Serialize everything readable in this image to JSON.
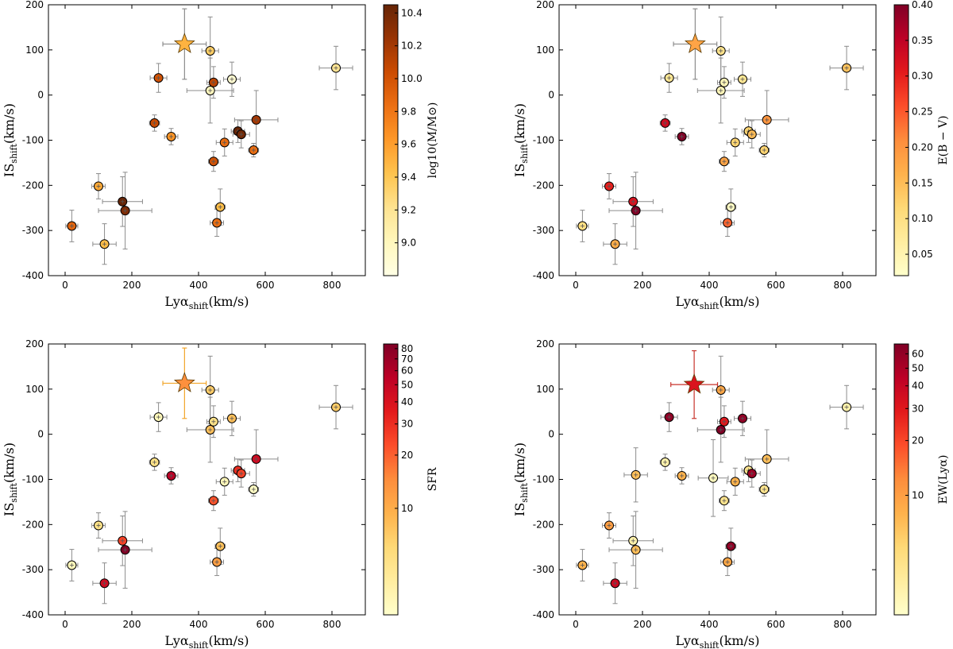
{
  "chart_data": [
    {
      "type": "scatter",
      "xlabel": "Lyα",
      "xlabel_sub": "shift",
      "xlabel_unit": "(km/s)",
      "ylabel": "IS",
      "ylabel_sub": "shift",
      "ylabel_unit": "(km/s)",
      "xlim": [
        -50,
        900
      ],
      "ylim": [
        -400,
        200
      ],
      "xticks": [
        0,
        200,
        400,
        600,
        800
      ],
      "yticks": [
        -400,
        -300,
        -200,
        -100,
        0,
        100,
        200
      ],
      "grid": false,
      "colorbar": {
        "label": "log10(M/M⊙)",
        "scale": "linear",
        "range": [
          8.8,
          10.45
        ],
        "ticks": [
          9.0,
          9.2,
          9.4,
          9.6,
          9.8,
          10.0,
          10.2,
          10.4
        ],
        "tick_labels": [
          "9.0",
          "9.2",
          "9.4",
          "9.6",
          "9.8",
          "10.0",
          "10.2",
          "10.4"
        ]
      },
      "star": {
        "x": 358,
        "y": 113,
        "xerr": 65,
        "yerr": 78,
        "c": 9.5,
        "err_color": "#8c8c8c"
      },
      "points": [
        {
          "x": 20,
          "y": -290,
          "xerr": 18,
          "yerr": 35,
          "c": 9.9
        },
        {
          "x": 100,
          "y": -202,
          "xerr": 20,
          "yerr": 28,
          "c": 9.55
        },
        {
          "x": 118,
          "y": -330,
          "xerr": 35,
          "yerr": 45,
          "c": 9.45
        },
        {
          "x": 172,
          "y": -236,
          "xerr": 60,
          "yerr": 55,
          "c": 10.45
        },
        {
          "x": 180,
          "y": -256,
          "xerr": 80,
          "yerr": 85,
          "c": 10.35
        },
        {
          "x": 268,
          "y": -62,
          "xerr": 15,
          "yerr": 18,
          "c": 10.05
        },
        {
          "x": 280,
          "y": 38,
          "xerr": 25,
          "yerr": 32,
          "c": 10.0
        },
        {
          "x": 318,
          "y": -92,
          "xerr": 20,
          "yerr": 18,
          "c": 9.65
        },
        {
          "x": 435,
          "y": 98,
          "xerr": 25,
          "yerr": 75,
          "c": 9.35
        },
        {
          "x": 435,
          "y": 10,
          "xerr": 70,
          "yerr": 72,
          "c": 9.0
        },
        {
          "x": 445,
          "y": 28,
          "xerr": 20,
          "yerr": 35,
          "c": 10.1
        },
        {
          "x": 445,
          "y": -147,
          "xerr": 15,
          "yerr": 22,
          "c": 10.0
        },
        {
          "x": 455,
          "y": -283,
          "xerr": 20,
          "yerr": 30,
          "c": 9.85
        },
        {
          "x": 465,
          "y": -248,
          "xerr": 15,
          "yerr": 40,
          "c": 9.45
        },
        {
          "x": 478,
          "y": -105,
          "xerr": 25,
          "yerr": 30,
          "c": 9.85
        },
        {
          "x": 500,
          "y": 35,
          "xerr": 25,
          "yerr": 38,
          "c": 8.9
        },
        {
          "x": 518,
          "y": -80,
          "xerr": 20,
          "yerr": 25,
          "c": 10.45
        },
        {
          "x": 528,
          "y": -87,
          "xerr": 25,
          "yerr": 30,
          "c": 10.4
        },
        {
          "x": 565,
          "y": -122,
          "xerr": 15,
          "yerr": 15,
          "c": 9.85
        },
        {
          "x": 573,
          "y": -55,
          "xerr": 65,
          "yerr": 65,
          "c": 10.2
        },
        {
          "x": 812,
          "y": 60,
          "xerr": 50,
          "yerr": 48,
          "c": 9.2
        }
      ]
    },
    {
      "type": "scatter",
      "xlabel": "Lyα",
      "xlabel_sub": "shift",
      "xlabel_unit": "(km/s)",
      "ylabel": "IS",
      "ylabel_sub": "shift",
      "ylabel_unit": "(km/s)",
      "xlim": [
        -50,
        900
      ],
      "ylim": [
        -400,
        200
      ],
      "xticks": [
        0,
        200,
        400,
        600,
        800
      ],
      "yticks": [
        -400,
        -300,
        -200,
        -100,
        0,
        100,
        200
      ],
      "grid": false,
      "colorbar": {
        "label": "E(B − V)",
        "scale": "linear",
        "range": [
          0.02,
          0.4
        ],
        "ticks": [
          0.05,
          0.1,
          0.15,
          0.2,
          0.25,
          0.3,
          0.35,
          0.4
        ],
        "tick_labels": [
          "0.05",
          "0.10",
          "0.15",
          "0.20",
          "0.25",
          "0.30",
          "0.35",
          "0.40"
        ]
      },
      "star": {
        "x": 358,
        "y": 113,
        "xerr": 65,
        "yerr": 78,
        "c": 0.18,
        "err_color": "#8c8c8c"
      },
      "points": [
        {
          "x": 20,
          "y": -290,
          "xerr": 18,
          "yerr": 35,
          "c": 0.1
        },
        {
          "x": 100,
          "y": -202,
          "xerr": 20,
          "yerr": 28,
          "c": 0.3
        },
        {
          "x": 118,
          "y": -330,
          "xerr": 35,
          "yerr": 45,
          "c": 0.17
        },
        {
          "x": 172,
          "y": -236,
          "xerr": 60,
          "yerr": 55,
          "c": 0.32
        },
        {
          "x": 180,
          "y": -256,
          "xerr": 80,
          "yerr": 85,
          "c": 0.4
        },
        {
          "x": 268,
          "y": -62,
          "xerr": 15,
          "yerr": 18,
          "c": 0.33
        },
        {
          "x": 280,
          "y": 38,
          "xerr": 25,
          "yerr": 32,
          "c": 0.08
        },
        {
          "x": 318,
          "y": -92,
          "xerr": 20,
          "yerr": 18,
          "c": 0.4
        },
        {
          "x": 435,
          "y": 98,
          "xerr": 25,
          "yerr": 75,
          "c": 0.09
        },
        {
          "x": 435,
          "y": 10,
          "xerr": 70,
          "yerr": 72,
          "c": 0.04
        },
        {
          "x": 445,
          "y": 28,
          "xerr": 20,
          "yerr": 35,
          "c": 0.04
        },
        {
          "x": 445,
          "y": -147,
          "xerr": 15,
          "yerr": 22,
          "c": 0.18
        },
        {
          "x": 455,
          "y": -283,
          "xerr": 20,
          "yerr": 30,
          "c": 0.24
        },
        {
          "x": 465,
          "y": -248,
          "xerr": 15,
          "yerr": 40,
          "c": 0.03
        },
        {
          "x": 478,
          "y": -105,
          "xerr": 25,
          "yerr": 30,
          "c": 0.12
        },
        {
          "x": 500,
          "y": 35,
          "xerr": 25,
          "yerr": 38,
          "c": 0.08
        },
        {
          "x": 518,
          "y": -80,
          "xerr": 20,
          "yerr": 25,
          "c": 0.12
        },
        {
          "x": 528,
          "y": -87,
          "xerr": 25,
          "yerr": 30,
          "c": 0.15
        },
        {
          "x": 565,
          "y": -122,
          "xerr": 15,
          "yerr": 15,
          "c": 0.12
        },
        {
          "x": 573,
          "y": -55,
          "xerr": 65,
          "yerr": 65,
          "c": 0.2
        },
        {
          "x": 812,
          "y": 60,
          "xerr": 50,
          "yerr": 48,
          "c": 0.14
        }
      ]
    },
    {
      "type": "scatter",
      "xlabel": "Lyα",
      "xlabel_sub": "shift",
      "xlabel_unit": "(km/s)",
      "ylabel": "IS",
      "ylabel_sub": "shift",
      "ylabel_unit": "(km/s)",
      "xlim": [
        -50,
        900
      ],
      "ylim": [
        -400,
        200
      ],
      "xticks": [
        0,
        200,
        400,
        600,
        800
      ],
      "yticks": [
        -400,
        -300,
        -200,
        -100,
        0,
        100,
        200
      ],
      "grid": false,
      "colorbar": {
        "label": "SFR",
        "scale": "log",
        "range": [
          2.5,
          85
        ],
        "ticks": [
          10,
          20,
          30,
          40,
          50,
          60,
          70,
          80
        ],
        "tick_labels": [
          "10",
          "20",
          "30",
          "40",
          "50",
          "60",
          "70",
          "80"
        ]
      },
      "star": {
        "x": 358,
        "y": 113,
        "xerr": 65,
        "yerr": 78,
        "c": 14,
        "err_color": "#f2a52a"
      },
      "points": [
        {
          "x": 20,
          "y": -290,
          "xerr": 18,
          "yerr": 35,
          "c": 3
        },
        {
          "x": 100,
          "y": -202,
          "xerr": 20,
          "yerr": 28,
          "c": 5
        },
        {
          "x": 118,
          "y": -330,
          "xerr": 35,
          "yerr": 45,
          "c": 45
        },
        {
          "x": 172,
          "y": -236,
          "xerr": 60,
          "yerr": 55,
          "c": 25
        },
        {
          "x": 180,
          "y": -256,
          "xerr": 80,
          "yerr": 85,
          "c": 85
        },
        {
          "x": 268,
          "y": -62,
          "xerr": 15,
          "yerr": 18,
          "c": 5
        },
        {
          "x": 280,
          "y": 38,
          "xerr": 25,
          "yerr": 32,
          "c": 3
        },
        {
          "x": 318,
          "y": -92,
          "xerr": 20,
          "yerr": 18,
          "c": 55
        },
        {
          "x": 435,
          "y": 98,
          "xerr": 25,
          "yerr": 75,
          "c": 7
        },
        {
          "x": 435,
          "y": 10,
          "xerr": 70,
          "yerr": 72,
          "c": 8
        },
        {
          "x": 445,
          "y": 28,
          "xerr": 20,
          "yerr": 35,
          "c": 5
        },
        {
          "x": 445,
          "y": -147,
          "xerr": 15,
          "yerr": 22,
          "c": 22
        },
        {
          "x": 455,
          "y": -283,
          "xerr": 20,
          "yerr": 30,
          "c": 12
        },
        {
          "x": 465,
          "y": -248,
          "xerr": 15,
          "yerr": 40,
          "c": 8
        },
        {
          "x": 478,
          "y": -105,
          "xerr": 25,
          "yerr": 30,
          "c": 3
        },
        {
          "x": 500,
          "y": 35,
          "xerr": 25,
          "yerr": 38,
          "c": 8
        },
        {
          "x": 518,
          "y": -80,
          "xerr": 20,
          "yerr": 25,
          "c": 30
        },
        {
          "x": 528,
          "y": -87,
          "xerr": 25,
          "yerr": 30,
          "c": 25
        },
        {
          "x": 565,
          "y": -122,
          "xerr": 15,
          "yerr": 15,
          "c": 2.7
        },
        {
          "x": 573,
          "y": -55,
          "xerr": 65,
          "yerr": 65,
          "c": 45
        },
        {
          "x": 812,
          "y": 60,
          "xerr": 50,
          "yerr": 48,
          "c": 7
        }
      ]
    },
    {
      "type": "scatter",
      "xlabel": "Lyα",
      "xlabel_sub": "shift",
      "xlabel_unit": "(km/s)",
      "ylabel": "IS",
      "ylabel_sub": "shift",
      "ylabel_unit": "(km/s)",
      "xlim": [
        -50,
        900
      ],
      "ylim": [
        -400,
        200
      ],
      "xticks": [
        0,
        200,
        400,
        600,
        800
      ],
      "yticks": [
        -400,
        -300,
        -200,
        -100,
        0,
        100,
        200
      ],
      "grid": false,
      "colorbar": {
        "label": "EW(Lyα)",
        "scale": "log",
        "range": [
          2.2,
          68
        ],
        "ticks": [
          10,
          20,
          30,
          40,
          50,
          60
        ],
        "tick_labels": [
          "10",
          "20",
          "30",
          "40",
          "50",
          "60"
        ]
      },
      "star": {
        "x": 355,
        "y": 110,
        "xerr": 70,
        "yerr": 75,
        "c": 32,
        "err_color": "#c8322a"
      },
      "points": [
        {
          "x": 20,
          "y": -290,
          "xerr": 18,
          "yerr": 35,
          "c": 8
        },
        {
          "x": 100,
          "y": -202,
          "xerr": 20,
          "yerr": 28,
          "c": 10
        },
        {
          "x": 118,
          "y": -330,
          "xerr": 35,
          "yerr": 45,
          "c": 38
        },
        {
          "x": 172,
          "y": -236,
          "xerr": 60,
          "yerr": 55,
          "c": 3
        },
        {
          "x": 180,
          "y": -256,
          "xerr": 80,
          "yerr": 85,
          "c": 7
        },
        {
          "x": 180,
          "y": -90,
          "xerr": 35,
          "yerr": 60,
          "c": 7
        },
        {
          "x": 268,
          "y": -62,
          "xerr": 15,
          "yerr": 18,
          "c": 3
        },
        {
          "x": 280,
          "y": 38,
          "xerr": 25,
          "yerr": 32,
          "c": 60
        },
        {
          "x": 318,
          "y": -92,
          "xerr": 20,
          "yerr": 18,
          "c": 8
        },
        {
          "x": 412,
          "y": -97,
          "xerr": 45,
          "yerr": 85,
          "c": 2.5
        },
        {
          "x": 435,
          "y": 98,
          "xerr": 25,
          "yerr": 75,
          "c": 9
        },
        {
          "x": 435,
          "y": 10,
          "xerr": 70,
          "yerr": 72,
          "c": 68
        },
        {
          "x": 445,
          "y": 28,
          "xerr": 20,
          "yerr": 35,
          "c": 30
        },
        {
          "x": 445,
          "y": -147,
          "xerr": 15,
          "yerr": 22,
          "c": 4
        },
        {
          "x": 455,
          "y": -283,
          "xerr": 20,
          "yerr": 30,
          "c": 9
        },
        {
          "x": 465,
          "y": -248,
          "xerr": 15,
          "yerr": 40,
          "c": 60
        },
        {
          "x": 478,
          "y": -105,
          "xerr": 25,
          "yerr": 30,
          "c": 8
        },
        {
          "x": 500,
          "y": 35,
          "xerr": 25,
          "yerr": 38,
          "c": 60
        },
        {
          "x": 518,
          "y": -80,
          "xerr": 20,
          "yerr": 25,
          "c": 4
        },
        {
          "x": 528,
          "y": -87,
          "xerr": 25,
          "yerr": 30,
          "c": 55
        },
        {
          "x": 565,
          "y": -122,
          "xerr": 15,
          "yerr": 15,
          "c": 4
        },
        {
          "x": 573,
          "y": -55,
          "xerr": 65,
          "yerr": 65,
          "c": 7
        },
        {
          "x": 812,
          "y": 60,
          "xerr": 50,
          "yerr": 48,
          "c": 3
        }
      ]
    }
  ]
}
